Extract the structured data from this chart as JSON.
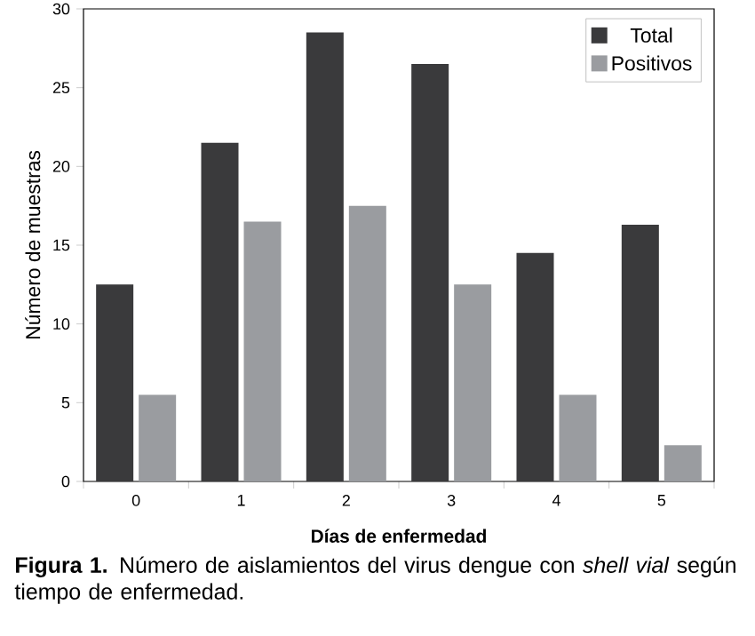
{
  "chart_data": {
    "type": "bar",
    "categories": [
      "0",
      "1",
      "2",
      "3",
      "4",
      "5"
    ],
    "series": [
      {
        "name": "Total",
        "color": "#3a3a3c",
        "values": [
          12.5,
          21.5,
          28.5,
          26.5,
          14.5,
          16.3
        ]
      },
      {
        "name": "Positivos",
        "color": "#9a9ca0",
        "values": [
          5.5,
          16.5,
          17.5,
          12.5,
          5.5,
          2.3
        ]
      }
    ],
    "xlabel": "Días de enfermedad",
    "ylabel": "Número de muestras",
    "ylim": [
      0,
      30
    ],
    "yticks": [
      0,
      5,
      10,
      15,
      20,
      25,
      30
    ],
    "legend": "top right",
    "grid": false,
    "annotations": [
      "**Figura 1.** Número de aislamientos del virus dengue con *shell vial* según tiempo de enfermedad."
    ]
  }
}
